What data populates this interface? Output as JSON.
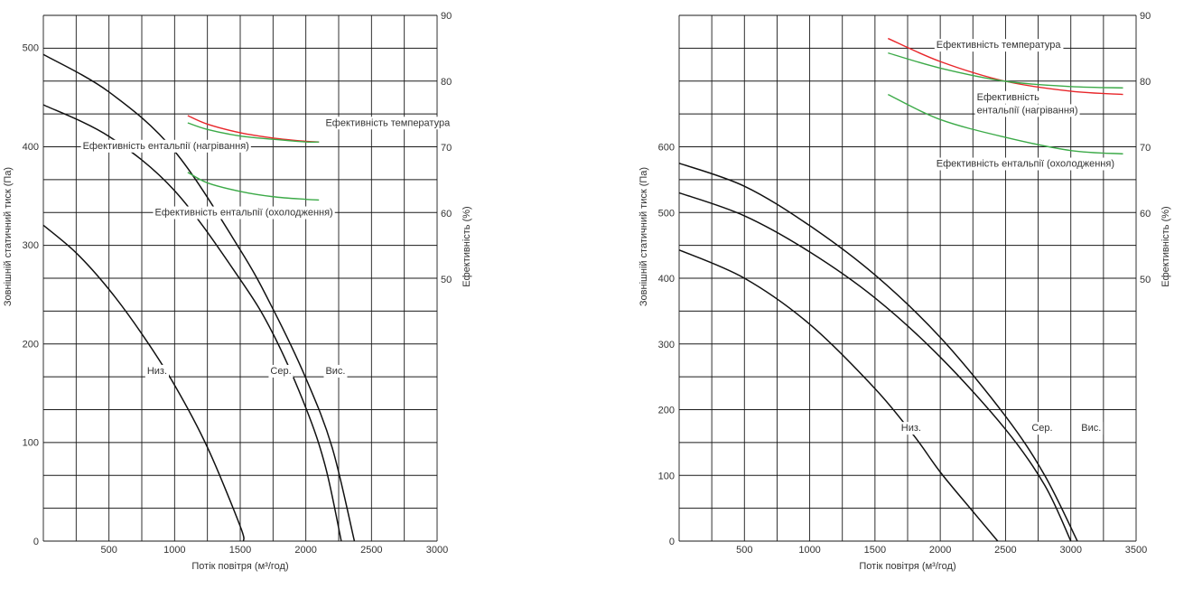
{
  "chart_data": [
    {
      "type": "line",
      "xlabel": "Потік повітря (м³/год)",
      "ylabel_left": "Зовнішній статичний тиск (Па)",
      "ylabel_right": "Ефективність (%)",
      "xlim": [
        0,
        3000
      ],
      "x_ticks": [
        "500",
        "1000",
        "1500",
        "2000",
        "2500",
        "3000"
      ],
      "ylim_left": [
        0,
        500
      ],
      "y_ticks_left": [
        "0",
        "100",
        "200",
        "300",
        "400",
        "500"
      ],
      "ylim_right": [
        50,
        90
      ],
      "y_ticks_right": [
        "50",
        "60",
        "70",
        "80",
        "90"
      ],
      "grid": true,
      "pressure_series": [
        {
          "name": "Низ.",
          "x": [
            0,
            250,
            500,
            750,
            1000,
            1250,
            1500,
            1525
          ],
          "y": [
            320,
            292,
            255,
            210,
            158,
            95,
            15,
            0
          ]
        },
        {
          "name": "Сер.",
          "x": [
            0,
            500,
            1000,
            1500,
            1750,
            2000,
            2150,
            2270
          ],
          "y": [
            442,
            410,
            355,
            265,
            210,
            135,
            75,
            0
          ]
        },
        {
          "name": "Вис.",
          "x": [
            0,
            500,
            1000,
            1500,
            1750,
            2000,
            2200,
            2370
          ],
          "y": [
            493,
            455,
            395,
            295,
            235,
            165,
            95,
            0
          ]
        }
      ],
      "efficiency_series": [
        {
          "name": "Ефективність температура",
          "color": "#e8262a",
          "x": [
            1100,
            1250,
            1500,
            1750,
            2000,
            2100
          ],
          "y": [
            74.8,
            73.5,
            72.2,
            71.4,
            70.9,
            70.8
          ]
        },
        {
          "name": "Ефективність ентальпії (нагрівання)",
          "color": "#3caa48",
          "x": [
            1100,
            1250,
            1500,
            1750,
            2000,
            2100
          ],
          "y": [
            73.7,
            72.7,
            71.7,
            71.2,
            70.8,
            70.8
          ]
        },
        {
          "name": "Ефективність ентальпії (охолодження)",
          "color": "#3caa48",
          "x": [
            1100,
            1250,
            1500,
            1750,
            2000,
            2100
          ],
          "y": [
            66.2,
            64.6,
            63.3,
            62.5,
            62.1,
            62.0
          ]
        }
      ],
      "labels": [
        {
          "text": "Ефективність температура",
          "x": 2150,
          "y_pct": 73.8
        },
        {
          "text": "Ефективність ентальпії (нагрівання)",
          "x": 300,
          "y_pct": 70.3
        },
        {
          "text": "Ефективність ентальпії (охолодження)",
          "x": 850,
          "y_pct": 60.2
        },
        {
          "text": "Низ.",
          "x": 790,
          "y_press": 173
        },
        {
          "text": "Сер.",
          "x": 1730,
          "y_press": 173
        },
        {
          "text": "Вис.",
          "x": 2150,
          "y_press": 173
        }
      ]
    },
    {
      "type": "line",
      "xlabel": "Потік повітря (м³/год)",
      "ylabel_left": "Зовнішній статичний тиск (Па)",
      "ylabel_right": "Ефективність (%)",
      "xlim": [
        0,
        3500
      ],
      "x_ticks": [
        "500",
        "1000",
        "1500",
        "2000",
        "2500",
        "3000",
        "3500"
      ],
      "ylim_left": [
        0,
        600
      ],
      "y_ticks_left": [
        "0",
        "100",
        "200",
        "300",
        "400",
        "500",
        "600"
      ],
      "ylim_right": [
        50,
        90
      ],
      "y_ticks_right": [
        "50",
        "60",
        "70",
        "80",
        "90"
      ],
      "grid": true,
      "pressure_series": [
        {
          "name": "Низ.",
          "x": [
            0,
            500,
            1000,
            1500,
            1800,
            2000,
            2250,
            2440
          ],
          "y": [
            443,
            400,
            330,
            232,
            160,
            105,
            45,
            0
          ]
        },
        {
          "name": "Сер.",
          "x": [
            0,
            500,
            1000,
            1500,
            2000,
            2500,
            2800,
            3000
          ],
          "y": [
            530,
            495,
            440,
            370,
            280,
            170,
            85,
            0
          ]
        },
        {
          "name": "Вис.",
          "x": [
            0,
            500,
            1000,
            1500,
            2000,
            2500,
            2800,
            3050
          ],
          "y": [
            575,
            540,
            480,
            405,
            310,
            190,
            100,
            0
          ]
        }
      ],
      "efficiency_series": [
        {
          "name": "Ефективність температура",
          "color": "#e8262a",
          "x": [
            1600,
            2000,
            2500,
            3000,
            3400
          ],
          "y": [
            86.5,
            83.0,
            80.0,
            78.5,
            78.0
          ]
        },
        {
          "name": "Ефективність ентальпії (нагрівання)",
          "color": "#3caa48",
          "x": [
            1600,
            2000,
            2500,
            3000,
            3400
          ],
          "y": [
            84.3,
            82.0,
            80.0,
            79.2,
            79.0
          ]
        },
        {
          "name": "Ефективність ентальпії (охолодження)",
          "color": "#3caa48",
          "x": [
            1600,
            2000,
            2500,
            3000,
            3400
          ],
          "y": [
            78.0,
            74.2,
            71.5,
            69.5,
            69.0
          ]
        }
      ],
      "labels": [
        {
          "text": "Ефективність температура",
          "x": 1970,
          "y_pct": 85.6
        },
        {
          "text": "Ефективність",
          "x": 2280,
          "y_pct": 77.7
        },
        {
          "text": "ентальпії (нагрівання)",
          "x": 2280,
          "y_pct": 75.7
        },
        {
          "text": "Ефективність ентальпії (охолодження)",
          "x": 1970,
          "y_pct": 67.6
        },
        {
          "text": "Низ.",
          "x": 1700,
          "y_press": 173
        },
        {
          "text": "Сер.",
          "x": 2700,
          "y_press": 173
        },
        {
          "text": "Вис.",
          "x": 3080,
          "y_press": 173
        }
      ]
    }
  ]
}
